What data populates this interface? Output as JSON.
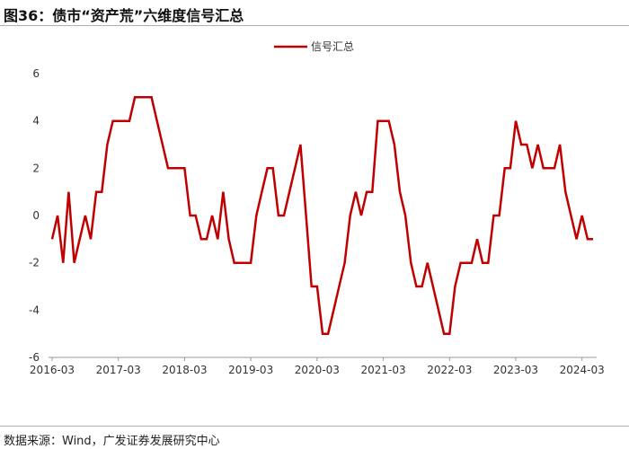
{
  "figure": {
    "title": "图36：债市“资产荒”六维度信号汇总",
    "source": "数据来源：Wind，广发证券发展研究中心"
  },
  "chart_data": {
    "type": "line",
    "title": "",
    "xlabel": "",
    "ylabel": "",
    "ylim": [
      -6,
      6
    ],
    "yticks": [
      -6,
      -4,
      -2,
      0,
      2,
      4,
      6
    ],
    "xticks": [
      "2016-03",
      "2017-03",
      "2018-03",
      "2019-03",
      "2020-03",
      "2021-03",
      "2022-03",
      "2023-03",
      "2024-03"
    ],
    "grid": false,
    "legend_position": "top",
    "line_color": "#c00000",
    "x": [
      "2016-03",
      "2016-04",
      "2016-05",
      "2016-06",
      "2016-07",
      "2016-08",
      "2016-09",
      "2016-10",
      "2016-11",
      "2016-12",
      "2017-01",
      "2017-02",
      "2017-03",
      "2017-04",
      "2017-05",
      "2017-06",
      "2017-07",
      "2017-08",
      "2017-09",
      "2017-10",
      "2017-11",
      "2017-12",
      "2018-01",
      "2018-02",
      "2018-03",
      "2018-04",
      "2018-05",
      "2018-06",
      "2018-07",
      "2018-08",
      "2018-09",
      "2018-10",
      "2018-11",
      "2018-12",
      "2019-01",
      "2019-02",
      "2019-03",
      "2019-04",
      "2019-05",
      "2019-06",
      "2019-07",
      "2019-08",
      "2019-09",
      "2019-10",
      "2019-11",
      "2019-12",
      "2020-01",
      "2020-02",
      "2020-03",
      "2020-04",
      "2020-05",
      "2020-06",
      "2020-07",
      "2020-08",
      "2020-09",
      "2020-10",
      "2020-11",
      "2020-12",
      "2021-01",
      "2021-02",
      "2021-03",
      "2021-04",
      "2021-05",
      "2021-06",
      "2021-07",
      "2021-08",
      "2021-09",
      "2021-10",
      "2021-11",
      "2021-12",
      "2022-01",
      "2022-02",
      "2022-03",
      "2022-04",
      "2022-05",
      "2022-06",
      "2022-07",
      "2022-08",
      "2022-09",
      "2022-10",
      "2022-11",
      "2022-12",
      "2023-01",
      "2023-02",
      "2023-03",
      "2023-04",
      "2023-05",
      "2023-06",
      "2023-07",
      "2023-08",
      "2023-09",
      "2023-10",
      "2023-11",
      "2023-12",
      "2024-01",
      "2024-02",
      "2024-03",
      "2024-04",
      "2024-05"
    ],
    "series": [
      {
        "name": "信号汇总",
        "values": [
          -1,
          0,
          -2,
          1,
          -2,
          -1,
          0,
          -1,
          1,
          1,
          3,
          4,
          4,
          4,
          4,
          5,
          5,
          5,
          5,
          4,
          3,
          2,
          2,
          2,
          2,
          0,
          0,
          -1,
          -1,
          0,
          -1,
          1,
          -1,
          -2,
          -2,
          -2,
          -2,
          0,
          1,
          2,
          2,
          0,
          0,
          1,
          2,
          3,
          0,
          -3,
          -3,
          -5,
          -5,
          -4,
          -3,
          -2,
          0,
          1,
          0,
          1,
          1,
          4,
          4,
          4,
          3,
          1,
          0,
          -2,
          -3,
          -3,
          -2,
          -3,
          -4,
          -5,
          -5,
          -3,
          -2,
          -2,
          -2,
          -1,
          -2,
          -2,
          0,
          0,
          2,
          2,
          4,
          3,
          3,
          2,
          3,
          2,
          2,
          2,
          3,
          1,
          0,
          -1,
          0,
          -1,
          -1
        ]
      }
    ]
  }
}
